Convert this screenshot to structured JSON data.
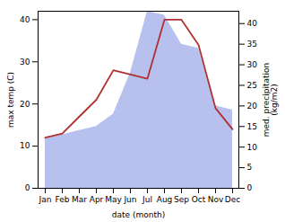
{
  "chart_data": {
    "type": "line",
    "categories": [
      "Jan",
      "Feb",
      "Mar",
      "Apr",
      "May",
      "Jun",
      "Jul",
      "Aug",
      "Sep",
      "Oct",
      "Nov",
      "Dec"
    ],
    "series": [
      {
        "type": "area",
        "axis": "y2",
        "color": "#b8c0ee",
        "values": [
          12,
          13,
          14,
          15,
          18,
          28,
          43,
          42,
          35,
          34,
          20,
          19
        ]
      },
      {
        "type": "line",
        "color": "#b03030",
        "values": [
          12,
          13,
          17,
          21,
          28,
          27,
          26,
          40,
          40,
          34,
          19,
          14
        ]
      }
    ],
    "xlabel": "date (month)",
    "ylabel": "max temp (C)",
    "y2label": "med. precipitation\n(kg/m2)",
    "ylim": [
      0,
      42
    ],
    "yticks": [
      0,
      10,
      20,
      30,
      40
    ],
    "y2lim": [
      0,
      43
    ],
    "y2ticks": [
      0,
      5,
      10,
      15,
      20,
      25,
      30,
      35,
      40
    ]
  }
}
